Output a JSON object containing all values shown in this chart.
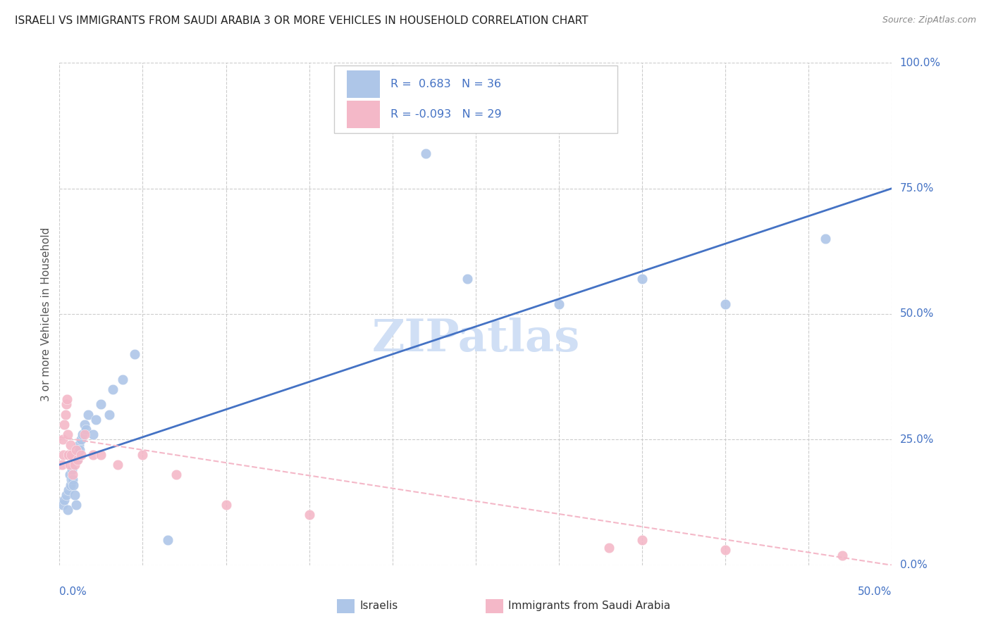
{
  "title": "ISRAELI VS IMMIGRANTS FROM SAUDI ARABIA 3 OR MORE VEHICLES IN HOUSEHOLD CORRELATION CHART",
  "source": "Source: ZipAtlas.com",
  "ylabel": "3 or more Vehicles in Household",
  "ytick_values": [
    0.0,
    25.0,
    50.0,
    75.0,
    100.0
  ],
  "legend_label_blue": "Israelis",
  "legend_label_pink": "Immigrants from Saudi Arabia",
  "R_blue": 0.683,
  "N_blue": 36,
  "R_pink": -0.093,
  "N_pink": 29,
  "blue_dot_color": "#aec6e8",
  "pink_dot_color": "#f4b8c8",
  "blue_line_color": "#4472c4",
  "pink_line_color": "#f4b8c8",
  "watermark_color": "#d0dff5",
  "title_color": "#222222",
  "axis_tick_color": "#4472c4",
  "grid_color": "#cccccc",
  "background_color": "#ffffff",
  "xlim": [
    0.0,
    50.0
  ],
  "ylim": [
    0.0,
    100.0
  ],
  "israelis_x": [
    0.2,
    0.3,
    0.4,
    0.5,
    0.55,
    0.6,
    0.65,
    0.7,
    0.75,
    0.8,
    0.85,
    0.9,
    1.0,
    1.05,
    1.1,
    1.15,
    1.2,
    1.3,
    1.4,
    1.5,
    1.6,
    1.7,
    2.0,
    2.2,
    2.5,
    3.0,
    3.2,
    3.8,
    4.5,
    6.5,
    22.0,
    24.5,
    30.0,
    35.0,
    40.0,
    46.0
  ],
  "israelis_y": [
    12.0,
    13.0,
    14.0,
    11.0,
    15.0,
    18.0,
    16.0,
    17.0,
    19.0,
    17.0,
    16.0,
    14.0,
    12.0,
    21.0,
    22.0,
    24.0,
    23.0,
    25.0,
    26.0,
    28.0,
    27.0,
    30.0,
    26.0,
    29.0,
    32.0,
    30.0,
    35.0,
    37.0,
    42.0,
    5.0,
    82.0,
    57.0,
    52.0,
    57.0,
    52.0,
    65.0
  ],
  "saudi_x": [
    0.15,
    0.2,
    0.25,
    0.3,
    0.35,
    0.4,
    0.45,
    0.5,
    0.55,
    0.6,
    0.65,
    0.7,
    0.8,
    0.9,
    1.0,
    1.1,
    1.3,
    1.5,
    2.0,
    2.5,
    3.5,
    5.0,
    7.0,
    10.0,
    15.0,
    33.0,
    35.0,
    40.0,
    47.0
  ],
  "saudi_y": [
    20.0,
    25.0,
    22.0,
    28.0,
    30.0,
    32.0,
    33.0,
    26.0,
    22.0,
    20.0,
    24.0,
    22.0,
    18.0,
    20.0,
    23.0,
    21.0,
    22.0,
    26.0,
    22.0,
    22.0,
    20.0,
    22.0,
    18.0,
    12.0,
    10.0,
    3.5,
    5.0,
    3.0,
    2.0
  ],
  "blue_line_x": [
    0.0,
    50.0
  ],
  "blue_line_y": [
    20.0,
    75.0
  ],
  "pink_line_x": [
    0.0,
    50.0
  ],
  "pink_line_y": [
    25.5,
    0.0
  ]
}
